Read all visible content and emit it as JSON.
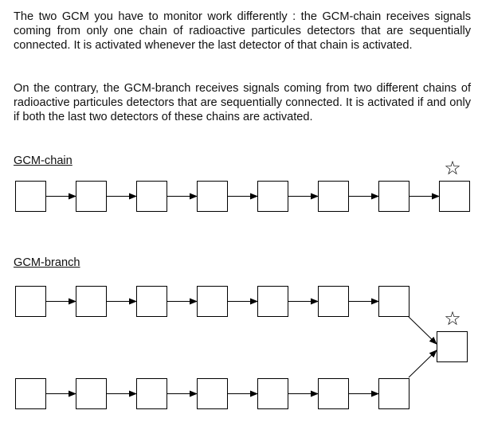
{
  "intro": {
    "paragraph_1": "The two GCM you have to monitor work differently : the GCM-chain receives signals coming from only one chain of radioactive particules detectors that are sequentially connected. It is activated whenever the last detector of that chain is activated.",
    "paragraph_2": "On the contrary, the GCM-branch receives signals coming from two different chains of radioactive particules detectors that are sequentially connected. It is activated if and only if both the last two detectors of these chains are activated."
  },
  "gcm_chain": {
    "title": "GCM-chain",
    "detector_count": 8,
    "active_marker": "☆"
  },
  "gcm_branch": {
    "title": "GCM-branch",
    "upper_chain_detector_count": 7,
    "lower_chain_detector_count": 7,
    "merge_detector_count": 1,
    "active_marker": "☆"
  },
  "colors": {
    "stroke": "#000000",
    "text": "#111111",
    "background": "#ffffff"
  }
}
